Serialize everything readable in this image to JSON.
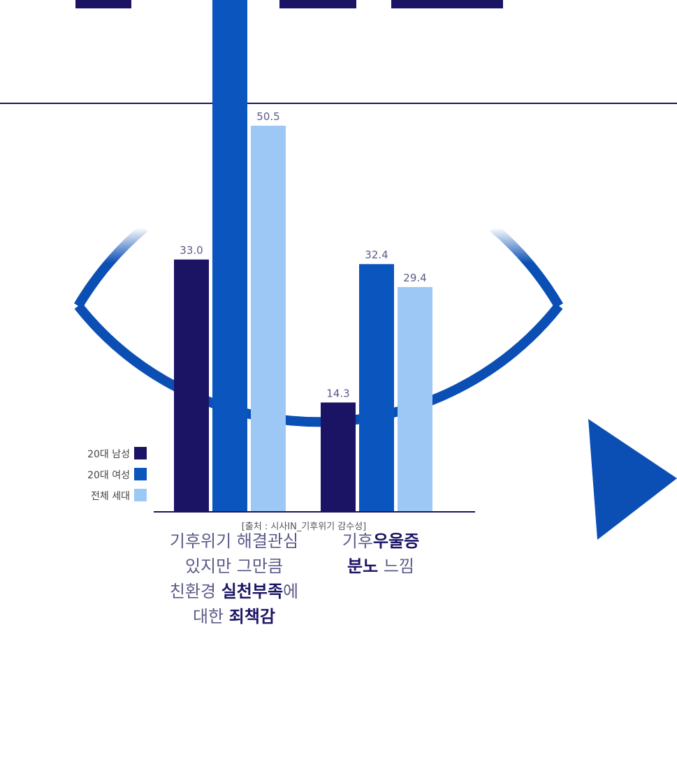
{
  "colors": {
    "series_men20": "#1b1464",
    "series_women20": "#0b55bf",
    "series_all": "#9dc8f6",
    "frame": "#0b4fb5",
    "axis": "#1b1464",
    "label_text": "#5b5b8a"
  },
  "chart_data": {
    "type": "bar",
    "title": "",
    "categories": [
      "기후위기 해결관심 있지만 그만큼 친환경 실천부족에 대한 죄책감",
      "기후우울증 분노 느낌"
    ],
    "series": [
      {
        "name": "20대 남성",
        "values": [
          33.0,
          14.3
        ]
      },
      {
        "name": "20대 여성",
        "values": [
          null,
          32.4
        ]
      },
      {
        "name": "전체 세대",
        "values": [
          50.5,
          29.4
        ]
      }
    ],
    "value_labels": [
      "33.0",
      "50.5",
      "14.3",
      "32.4",
      "29.4"
    ],
    "legend_position": "left",
    "grid": false,
    "xlabel": "",
    "ylabel": ""
  },
  "category_labels": {
    "cat1": {
      "line1": "기후위기 해결관심",
      "line2": "있지만 그만큼",
      "line3_plain": "친환경 ",
      "line3_bold": "실천부족",
      "line3_tail": "에",
      "line4_plain": "대한 ",
      "line4_bold": "죄책감"
    },
    "cat2": {
      "line1_plain": "기후",
      "line1_bold": "우울증",
      "line2_bold": "분노",
      "line2_plain": " 느낌"
    }
  },
  "legend": [
    {
      "label": "20대 남성",
      "color": "#1b1464"
    },
    {
      "label": "20대 여성",
      "color": "#0b55bf"
    },
    {
      "label": "전체 세대",
      "color": "#9dc8f6"
    }
  ],
  "source_text": "[출처 : 시사IN_기후위기 감수성]"
}
